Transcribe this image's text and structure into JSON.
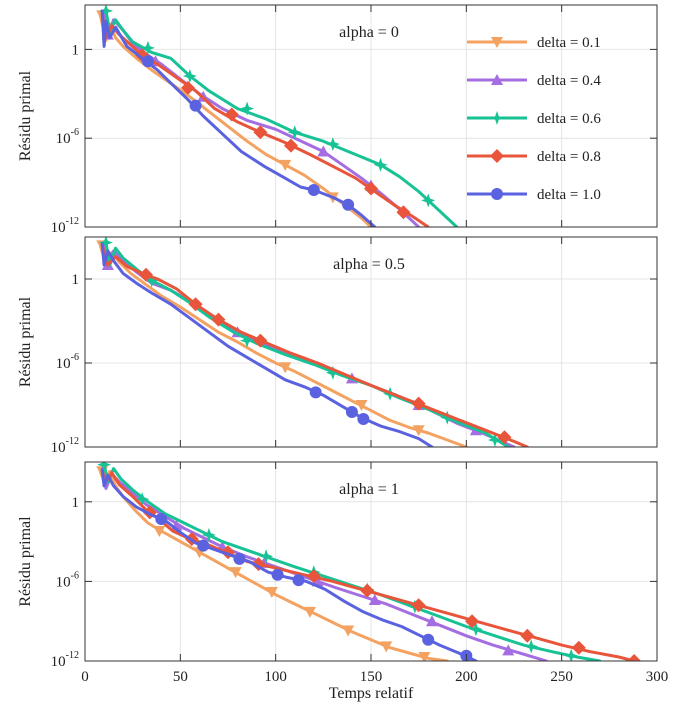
{
  "chart_data": [
    {
      "type": "line",
      "title": "alpha = 0",
      "ylabel": "Résidu primal",
      "xlabel": "",
      "xlim": [
        0,
        300
      ],
      "ylim": [
        -12,
        3
      ],
      "yscale": "log10",
      "grid": true,
      "legend_position": "top-right",
      "yticks": [
        {
          "base": "1",
          "exp": ""
        },
        {
          "base": "10",
          "exp": "-6"
        },
        {
          "base": "10",
          "exp": "-12"
        }
      ],
      "xticks": [],
      "series": [
        {
          "name": "delta = 0.1",
          "color": "#f4a261",
          "marker": "triangle-down",
          "x": [
            8,
            11,
            13,
            16,
            20,
            27,
            35,
            45,
            55,
            65,
            75,
            85,
            95,
            105,
            115,
            125,
            135,
            145,
            150
          ],
          "y": [
            2.3,
            0.6,
            1.7,
            0.8,
            0.2,
            -0.6,
            -1.4,
            -2.3,
            -3.2,
            -4.2,
            -5.2,
            -6.2,
            -7.1,
            -7.8,
            -8.5,
            -9.4,
            -10.4,
            -11.4,
            -12
          ],
          "mx": [
            9,
            105,
            130
          ],
          "my": [
            2.3,
            -7.8,
            -10.0
          ]
        },
        {
          "name": "delta = 0.4",
          "color": "#a56de2",
          "marker": "triangle-up",
          "x": [
            10,
            12,
            15,
            20,
            25,
            33,
            40,
            50,
            60,
            72,
            85,
            100,
            115,
            125,
            135,
            145,
            155,
            165,
            175
          ],
          "y": [
            2.4,
            1.0,
            2.0,
            1.3,
            0.4,
            -0.4,
            -1.0,
            -2.0,
            -3.0,
            -4.0,
            -4.8,
            -5.4,
            -6.3,
            -6.9,
            -7.8,
            -8.7,
            -9.7,
            -10.8,
            -12
          ],
          "mx": [
            12,
            37,
            62,
            125,
            150
          ],
          "my": [
            1.0,
            -0.8,
            -3.2,
            -6.9,
            -9.2
          ]
        },
        {
          "name": "delta = 0.6",
          "color": "#17c294",
          "marker": "star",
          "x": [
            11,
            13,
            16,
            20,
            25,
            35,
            45,
            55,
            65,
            80,
            95,
            110,
            125,
            140,
            155,
            165,
            175,
            185,
            195
          ],
          "y": [
            2.6,
            1.2,
            2.0,
            1.3,
            0.5,
            -0.2,
            -0.6,
            -1.8,
            -2.8,
            -4.0,
            -4.7,
            -5.6,
            -6.2,
            -7.0,
            -7.8,
            -8.6,
            -9.6,
            -10.8,
            -12
          ],
          "mx": [
            11,
            33,
            55,
            85,
            110,
            130,
            155,
            180
          ],
          "my": [
            2.6,
            0.1,
            -1.8,
            -4.0,
            -5.6,
            -6.4,
            -7.8,
            -10.2
          ]
        },
        {
          "name": "delta = 0.8",
          "color": "#e8553b",
          "marker": "diamond",
          "x": [
            9,
            11,
            14,
            18,
            24,
            30,
            38,
            48,
            58,
            68,
            80,
            92,
            105,
            118,
            130,
            142,
            152,
            162,
            172,
            180
          ],
          "y": [
            2.3,
            0.8,
            1.6,
            1.0,
            0.3,
            -0.4,
            -1.0,
            -1.9,
            -2.8,
            -4.0,
            -4.9,
            -5.6,
            -6.3,
            -7.1,
            -7.9,
            -8.7,
            -9.6,
            -10.5,
            -11.3,
            -12
          ],
          "mx": [
            30,
            54,
            77,
            92,
            108,
            150,
            167
          ],
          "my": [
            -0.4,
            -2.6,
            -4.4,
            -5.6,
            -6.5,
            -9.4,
            -11.0
          ]
        },
        {
          "name": "delta = 1.0",
          "color": "#5b62e0",
          "marker": "circle",
          "x": [
            9,
            10,
            11,
            13,
            16,
            22,
            30,
            38,
            46,
            54,
            62,
            72,
            82,
            94,
            105,
            113,
            120,
            130,
            138,
            145,
            152
          ],
          "y": [
            2.6,
            0.2,
            1.9,
            0.8,
            1.5,
            0.2,
            -0.6,
            -1.4,
            -2.4,
            -3.4,
            -4.5,
            -5.7,
            -6.9,
            -7.9,
            -8.7,
            -9.3,
            -9.5,
            -10.0,
            -10.5,
            -11.2,
            -12
          ],
          "mx": [
            33,
            58,
            120,
            138
          ],
          "my": [
            -0.8,
            -3.8,
            -9.5,
            -10.5
          ]
        }
      ]
    },
    {
      "type": "line",
      "title": "alpha = 0.5",
      "ylabel": "Résidu primal",
      "xlabel": "",
      "xlim": [
        0,
        300
      ],
      "ylim": [
        -12,
        3
      ],
      "yscale": "log10",
      "grid": true,
      "yticks": [
        {
          "base": "1",
          "exp": ""
        },
        {
          "base": "10",
          "exp": "-6"
        },
        {
          "base": "10",
          "exp": "-12"
        }
      ],
      "xticks": [],
      "series": [
        {
          "name": "delta = 0.1",
          "color": "#f4a261",
          "marker": "triangle-down",
          "x": [
            8,
            11,
            14,
            18,
            24,
            32,
            40,
            50,
            60,
            70,
            80,
            90,
            100,
            110,
            120,
            130,
            140,
            150,
            160,
            170,
            180,
            190,
            200
          ],
          "y": [
            2.4,
            1.0,
            1.9,
            1.2,
            0.4,
            -0.4,
            -1.2,
            -2.0,
            -2.9,
            -3.8,
            -4.5,
            -5.3,
            -6.0,
            -6.6,
            -7.3,
            -8.0,
            -8.7,
            -9.4,
            -10.1,
            -10.6,
            -11.0,
            -11.5,
            -12
          ],
          "mx": [
            9,
            105,
            145,
            175
          ],
          "my": [
            2.4,
            -6.3,
            -9.0,
            -10.8
          ]
        },
        {
          "name": "delta = 0.4",
          "color": "#a56de2",
          "marker": "triangle-up",
          "x": [
            10,
            12,
            15,
            20,
            27,
            35,
            45,
            55,
            65,
            78,
            90,
            105,
            120,
            135,
            150,
            165,
            180,
            195,
            210,
            225
          ],
          "y": [
            2.5,
            1.0,
            2.0,
            1.3,
            0.5,
            -0.3,
            -0.8,
            -1.6,
            -2.6,
            -3.6,
            -4.5,
            -5.3,
            -6.0,
            -6.8,
            -7.6,
            -8.4,
            -9.3,
            -10.3,
            -11.1,
            -12
          ],
          "mx": [
            12,
            80,
            140,
            175,
            205
          ],
          "my": [
            1.0,
            -3.8,
            -7.1,
            -9.0,
            -10.8
          ]
        },
        {
          "name": "delta = 0.6",
          "color": "#17c294",
          "marker": "star",
          "x": [
            11,
            13,
            16,
            20,
            27,
            35,
            45,
            55,
            65,
            78,
            90,
            105,
            120,
            135,
            150,
            165,
            180,
            195,
            210,
            222
          ],
          "y": [
            2.6,
            1.0,
            2.2,
            1.5,
            0.7,
            -0.1,
            -0.8,
            -1.7,
            -2.7,
            -3.8,
            -4.6,
            -5.4,
            -6.1,
            -6.9,
            -7.6,
            -8.5,
            -9.3,
            -10.2,
            -11.0,
            -12
          ],
          "mx": [
            11,
            35,
            85,
            130,
            160,
            190,
            215
          ],
          "my": [
            2.6,
            -0.1,
            -4.4,
            -6.7,
            -8.2,
            -9.9,
            -11.5
          ]
        },
        {
          "name": "delta = 0.8",
          "color": "#e8553b",
          "marker": "diamond",
          "x": [
            9,
            12,
            16,
            22,
            30,
            38,
            48,
            58,
            70,
            82,
            94,
            108,
            122,
            136,
            150,
            165,
            180,
            195,
            210,
            225,
            232
          ],
          "y": [
            2.4,
            1.0,
            1.6,
            0.9,
            0.4,
            0.0,
            -0.7,
            -1.8,
            -2.9,
            -3.8,
            -4.5,
            -5.3,
            -6.0,
            -6.8,
            -7.6,
            -8.4,
            -9.2,
            -10.0,
            -10.8,
            -11.6,
            -12
          ],
          "mx": [
            32,
            58,
            70,
            92,
            175,
            220
          ],
          "my": [
            0.3,
            -1.8,
            -2.9,
            -4.4,
            -8.9,
            -11.3
          ]
        },
        {
          "name": "delta = 1.0",
          "color": "#5b62e0",
          "marker": "circle",
          "x": [
            9,
            10,
            12,
            15,
            20,
            27,
            35,
            45,
            55,
            65,
            75,
            85,
            95,
            105,
            115,
            125,
            135,
            145,
            155,
            165,
            175,
            182
          ],
          "y": [
            2.5,
            1.0,
            2.0,
            1.3,
            0.4,
            -0.3,
            -1.0,
            -1.8,
            -2.8,
            -3.8,
            -4.8,
            -5.6,
            -6.4,
            -7.2,
            -7.7,
            -8.3,
            -9.1,
            -9.9,
            -10.5,
            -10.9,
            -11.4,
            -12
          ],
          "mx": [
            121,
            140,
            146
          ],
          "my": [
            -8.1,
            -9.5,
            -10.0
          ]
        }
      ]
    },
    {
      "type": "line",
      "title": "alpha = 1",
      "ylabel": "Résidu primal",
      "xlabel": "Temps relatif",
      "xlim": [
        0,
        300
      ],
      "ylim": [
        -12,
        3
      ],
      "yscale": "log10",
      "grid": true,
      "yticks": [
        {
          "base": "1",
          "exp": ""
        },
        {
          "base": "10",
          "exp": "-6"
        },
        {
          "base": "10",
          "exp": "-12"
        }
      ],
      "xticks": [
        "0",
        "50",
        "100",
        "150",
        "200",
        "250",
        "300"
      ],
      "series": [
        {
          "name": "delta = 0.1",
          "color": "#f4a261",
          "marker": "triangle-down",
          "x": [
            8,
            10,
            13,
            16,
            20,
            26,
            33,
            40,
            50,
            60,
            70,
            80,
            90,
            100,
            110,
            120,
            130,
            140,
            150,
            160,
            170,
            180,
            190
          ],
          "y": [
            2.3,
            1.5,
            2.3,
            1.2,
            0.4,
            -0.6,
            -1.6,
            -2.2,
            -3.0,
            -3.8,
            -4.6,
            -5.4,
            -6.2,
            -7.0,
            -7.7,
            -8.4,
            -9.1,
            -9.8,
            -10.4,
            -11.0,
            -11.4,
            -11.8,
            -12
          ],
          "mx": [
            9,
            39,
            60,
            79,
            98,
            118,
            138,
            158,
            178
          ],
          "my": [
            2.3,
            -2.2,
            -3.8,
            -5.3,
            -6.8,
            -8.3,
            -9.7,
            -10.9,
            -11.7
          ]
        },
        {
          "name": "delta = 0.4",
          "color": "#a56de2",
          "marker": "triangle-up",
          "x": [
            9,
            11,
            14,
            18,
            24,
            32,
            42,
            52,
            62,
            72,
            84,
            96,
            108,
            120,
            132,
            145,
            158,
            172,
            186,
            200,
            214,
            228,
            242
          ],
          "y": [
            2.5,
            1.0,
            2.1,
            1.5,
            0.8,
            -0.2,
            -1.1,
            -2.0,
            -2.7,
            -3.4,
            -4.1,
            -4.7,
            -5.3,
            -5.9,
            -6.5,
            -7.1,
            -7.7,
            -8.5,
            -9.3,
            -10.1,
            -10.8,
            -11.4,
            -12
          ],
          "mx": [
            48,
            72,
            94,
            122,
            152,
            182,
            222
          ],
          "my": [
            -1.8,
            -3.4,
            -4.6,
            -6.0,
            -7.4,
            -9.0,
            -11.2
          ]
        },
        {
          "name": "delta = 0.6",
          "color": "#17c294",
          "marker": "star",
          "x": [
            10,
            12,
            15,
            19,
            25,
            33,
            42,
            52,
            62,
            72,
            84,
            96,
            110,
            125,
            140,
            155,
            170,
            185,
            200,
            215,
            230,
            245,
            258,
            270
          ],
          "y": [
            2.8,
            1.5,
            2.5,
            1.7,
            0.9,
            0.0,
            -0.9,
            -1.6,
            -2.3,
            -3.0,
            -3.6,
            -4.2,
            -4.9,
            -5.6,
            -6.3,
            -7.0,
            -7.8,
            -8.6,
            -9.4,
            -10.1,
            -10.8,
            -11.3,
            -11.7,
            -12
          ],
          "mx": [
            10,
            30,
            65,
            95,
            120,
            148,
            173,
            205,
            234,
            255
          ],
          "my": [
            2.8,
            0.2,
            -2.5,
            -4.1,
            -5.3,
            -6.6,
            -7.9,
            -9.6,
            -10.9,
            -11.6
          ]
        },
        {
          "name": "delta = 0.8",
          "color": "#e8553b",
          "marker": "diamond",
          "x": [
            9,
            11,
            14,
            18,
            25,
            32,
            38,
            46,
            55,
            64,
            74,
            85,
            100,
            115,
            130,
            145,
            160,
            175,
            190,
            205,
            220,
            235,
            250,
            265,
            280,
            288
          ],
          "y": [
            2.3,
            1.5,
            2.2,
            1.3,
            0.4,
            -0.6,
            -1.2,
            -2.2,
            -2.8,
            -3.2,
            -3.8,
            -4.5,
            -5.0,
            -5.5,
            -6.0,
            -6.6,
            -7.2,
            -7.8,
            -8.4,
            -9.0,
            -9.6,
            -10.2,
            -10.8,
            -11.3,
            -11.7,
            -12
          ],
          "mx": [
            34,
            56,
            75,
            91,
            120,
            148,
            175,
            203,
            232,
            259,
            288
          ],
          "my": [
            -0.8,
            -2.8,
            -3.8,
            -4.7,
            -5.6,
            -6.7,
            -7.8,
            -9.0,
            -10.1,
            -11.0,
            -12
          ]
        },
        {
          "name": "delta = 1.0",
          "color": "#5b62e0",
          "marker": "circle",
          "x": [
            9,
            10,
            12,
            15,
            20,
            27,
            35,
            42,
            50,
            58,
            66,
            76,
            86,
            96,
            106,
            116,
            126,
            136,
            146,
            156,
            166,
            176,
            186,
            196,
            205
          ],
          "y": [
            2.4,
            1.2,
            2.0,
            1.2,
            0.4,
            -0.4,
            -1.0,
            -1.4,
            -2.3,
            -3.1,
            -3.5,
            -4.0,
            -4.5,
            -5.3,
            -5.7,
            -6.0,
            -6.6,
            -7.5,
            -8.3,
            -8.9,
            -9.4,
            -10.1,
            -10.8,
            -11.4,
            -12
          ],
          "mx": [
            40,
            62,
            81,
            101,
            112,
            180,
            200
          ],
          "my": [
            -1.3,
            -3.3,
            -4.3,
            -5.5,
            -5.9,
            -10.4,
            -11.6
          ]
        }
      ]
    }
  ]
}
